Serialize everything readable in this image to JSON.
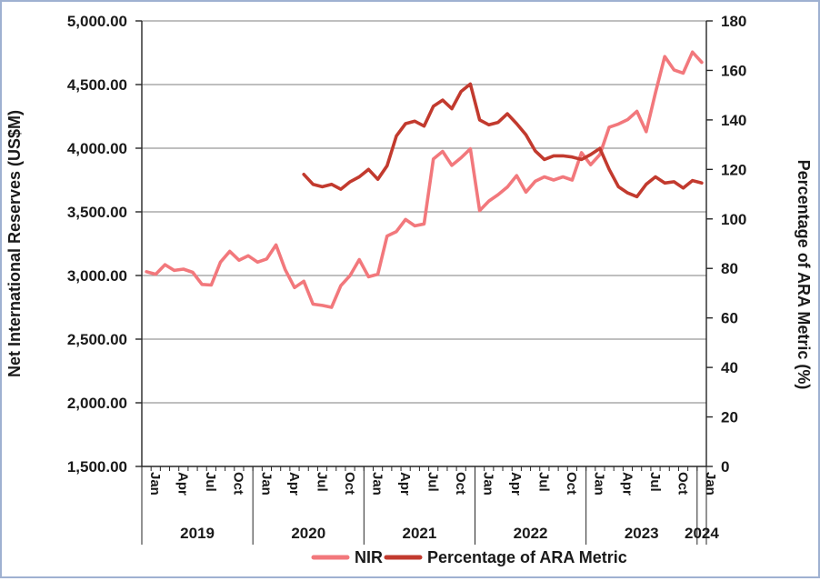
{
  "window": {
    "border_color": "#9FB1D1",
    "background": "#FFFFFF"
  },
  "chart_data": {
    "type": "line",
    "title": "",
    "n_points": 61,
    "x_start": "Jan 2019",
    "x_end": "Jan 2024",
    "month_label_step": 3,
    "month_labels": [
      "Jan",
      "Apr",
      "Jul",
      "Oct",
      "Jan",
      "Apr",
      "Jul",
      "Oct",
      "Jan",
      "Apr",
      "Jul",
      "Oct",
      "Jan",
      "Apr",
      "Jul",
      "Oct",
      "Jan",
      "Apr",
      "Jul",
      "Oct",
      "Jan"
    ],
    "year_labels": [
      "2019",
      "2020",
      "2021",
      "2022",
      "2023",
      "2024"
    ],
    "left_axis": {
      "title": "Net International Reserves (US$M)",
      "min": 1500,
      "max": 5000,
      "step": 500,
      "tick_labels": [
        "5,000.00",
        "4,500.00",
        "4,000.00",
        "3,500.00",
        "3,000.00",
        "2,500.00",
        "2,000.00",
        "1,500.00"
      ]
    },
    "right_axis": {
      "title": "Percentage of ARA Metric (%)",
      "min": 0,
      "max": 180,
      "step": 20,
      "tick_labels": [
        "180",
        "160",
        "140",
        "120",
        "100",
        "80",
        "60",
        "40",
        "20",
        "0"
      ]
    },
    "grid": {
      "horizontal": true,
      "color": "#999999"
    },
    "axis_color": "#262626",
    "text_color": "#1A1A1A",
    "legend": {
      "position": "bottom",
      "items": [
        "NIR",
        "Percentage of ARA Metric"
      ]
    },
    "series": [
      {
        "name": "NIR",
        "axis": "left",
        "color": "#F2787C",
        "values": [
          3030,
          3010,
          3085,
          3040,
          3050,
          3025,
          2930,
          2925,
          3105,
          3190,
          3120,
          3155,
          3105,
          3130,
          3240,
          3045,
          2905,
          2955,
          2775,
          2765,
          2750,
          2920,
          3000,
          3125,
          2990,
          3010,
          3310,
          3345,
          3440,
          3390,
          3405,
          3915,
          3975,
          3865,
          3925,
          3995,
          3510,
          3585,
          3635,
          3695,
          3785,
          3655,
          3740,
          3775,
          3750,
          3775,
          3750,
          3965,
          3870,
          3950,
          4165,
          4190,
          4225,
          4290,
          4130,
          4435,
          4720,
          4615,
          4590,
          4755,
          4675
        ]
      },
      {
        "name": "Percentage of ARA Metric",
        "axis": "right",
        "color": "#C23A2E",
        "values": [
          null,
          null,
          null,
          null,
          null,
          null,
          null,
          null,
          null,
          null,
          null,
          null,
          null,
          null,
          null,
          null,
          null,
          118,
          114,
          113,
          114,
          112,
          115,
          117,
          120,
          116,
          121.5,
          133.5,
          138.5,
          139.5,
          137.5,
          145.5,
          148,
          144.5,
          151.5,
          154.5,
          140,
          138,
          139,
          142.5,
          138.5,
          134,
          127.5,
          124,
          125.5,
          125.5,
          125,
          124,
          126,
          128.5,
          120,
          113,
          110.5,
          109,
          114,
          117,
          114.5,
          115,
          112.5,
          115.5,
          114.5
        ]
      }
    ]
  }
}
